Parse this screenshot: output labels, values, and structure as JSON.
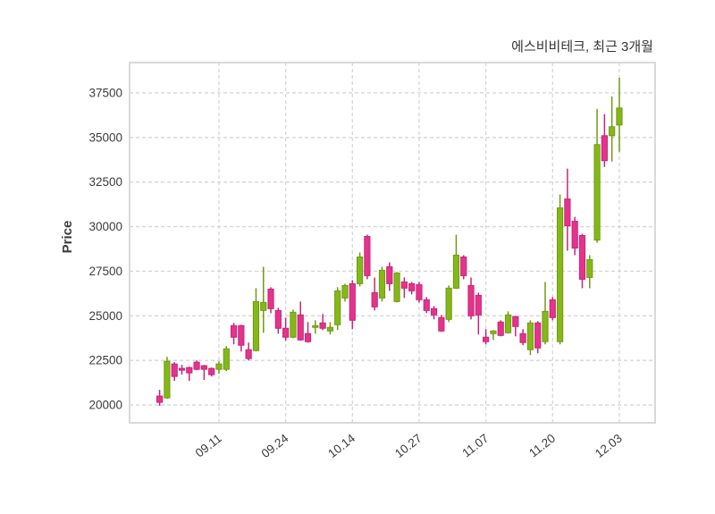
{
  "title": "에스비비테크, 최근 3개월",
  "y_axis": {
    "label": "Price",
    "ticks": [
      37500,
      35000,
      32500,
      30000,
      27500,
      25000,
      22500,
      20000
    ]
  },
  "x_axis": {
    "tick_labels": [
      "09.11",
      "09.24",
      "10.14",
      "10.27",
      "11.07",
      "11.20",
      "12.03"
    ],
    "tick_indices": [
      8,
      17,
      26,
      35,
      44,
      53,
      62
    ]
  },
  "chart_data": {
    "type": "candlestick",
    "title": "에스비비테크, 최근 3개월",
    "ylabel": "Price",
    "ylim": [
      19000,
      39200
    ],
    "grid": true,
    "up_color": "#84b819",
    "up_line_color": "#6f9b13",
    "down_color": "#e5338c",
    "down_line_color": "#c4267a",
    "grid_color": "#d6d6d6",
    "border_color": "#d9d9d9",
    "text_color": "#3c3c3c",
    "x_tick_labels": [
      "09.11",
      "09.24",
      "10.14",
      "10.27",
      "11.07",
      "11.20",
      "12.03"
    ],
    "x_tick_indices": [
      8,
      17,
      26,
      35,
      44,
      53,
      62
    ],
    "candles_ohlc": [
      [
        20500,
        20850,
        19950,
        20150
      ],
      [
        20400,
        22700,
        20350,
        22450
      ],
      [
        22300,
        22400,
        21350,
        21600
      ],
      [
        22050,
        22250,
        21700,
        21950
      ],
      [
        22100,
        22150,
        21350,
        21800
      ],
      [
        22400,
        22500,
        21950,
        22000
      ],
      [
        22200,
        22250,
        21400,
        22000
      ],
      [
        22050,
        22100,
        21600,
        21700
      ],
      [
        22000,
        22450,
        21750,
        22300
      ],
      [
        22000,
        23300,
        21900,
        23150
      ],
      [
        24450,
        24600,
        23400,
        23800
      ],
      [
        24450,
        24500,
        23000,
        23350
      ],
      [
        23100,
        23500,
        22500,
        22600
      ],
      [
        23050,
        26550,
        23000,
        25800
      ],
      [
        25300,
        27750,
        24050,
        25750
      ],
      [
        26500,
        26600,
        25150,
        25400
      ],
      [
        25300,
        25450,
        24000,
        24300
      ],
      [
        24300,
        24900,
        23600,
        23800
      ],
      [
        23800,
        25350,
        23750,
        25200
      ],
      [
        25050,
        25800,
        23600,
        23650
      ],
      [
        24000,
        24650,
        23500,
        23550
      ],
      [
        24350,
        24750,
        24000,
        24450
      ],
      [
        24600,
        25100,
        24200,
        24300
      ],
      [
        24150,
        24650,
        23950,
        24350
      ],
      [
        24500,
        26600,
        24200,
        26400
      ],
      [
        26000,
        26800,
        25800,
        26700
      ],
      [
        26800,
        27000,
        24250,
        24750
      ],
      [
        26800,
        28550,
        26650,
        28300
      ],
      [
        29450,
        29550,
        27050,
        27250
      ],
      [
        26300,
        27150,
        25300,
        25500
      ],
      [
        26000,
        27750,
        25800,
        27550
      ],
      [
        27750,
        28000,
        26400,
        26800
      ],
      [
        25800,
        27450,
        25750,
        27400
      ],
      [
        26900,
        27150,
        26000,
        26550
      ],
      [
        26800,
        26900,
        26200,
        26400
      ],
      [
        26750,
        26900,
        25750,
        25900
      ],
      [
        25900,
        26050,
        25150,
        25300
      ],
      [
        25400,
        25550,
        24800,
        25050
      ],
      [
        24900,
        25050,
        24100,
        24150
      ],
      [
        24800,
        26700,
        24650,
        26550
      ],
      [
        26550,
        29550,
        26500,
        28400
      ],
      [
        28300,
        28400,
        27050,
        27250
      ],
      [
        26700,
        27150,
        24800,
        25000
      ],
      [
        26150,
        26300,
        23950,
        25050
      ],
      [
        23800,
        24250,
        23400,
        23550
      ],
      [
        24000,
        24200,
        23650,
        24150
      ],
      [
        24650,
        24750,
        23850,
        23900
      ],
      [
        24050,
        25250,
        24000,
        25050
      ],
      [
        24950,
        25000,
        23850,
        24400
      ],
      [
        24000,
        24250,
        23350,
        23500
      ],
      [
        23100,
        24750,
        22800,
        24600
      ],
      [
        24600,
        24700,
        22900,
        23200
      ],
      [
        23550,
        26900,
        23400,
        25250
      ],
      [
        25900,
        26050,
        24750,
        24900
      ],
      [
        23550,
        31800,
        23400,
        31050
      ],
      [
        31550,
        33250,
        28650,
        30050
      ],
      [
        30300,
        30550,
        28400,
        28800
      ],
      [
        29500,
        29600,
        26550,
        27050
      ],
      [
        27150,
        28400,
        26550,
        28150
      ],
      [
        29250,
        36600,
        29100,
        34600
      ],
      [
        35100,
        36300,
        33350,
        33700
      ],
      [
        35100,
        37300,
        33650,
        35600
      ],
      [
        35700,
        38350,
        34200,
        36650
      ]
    ]
  }
}
